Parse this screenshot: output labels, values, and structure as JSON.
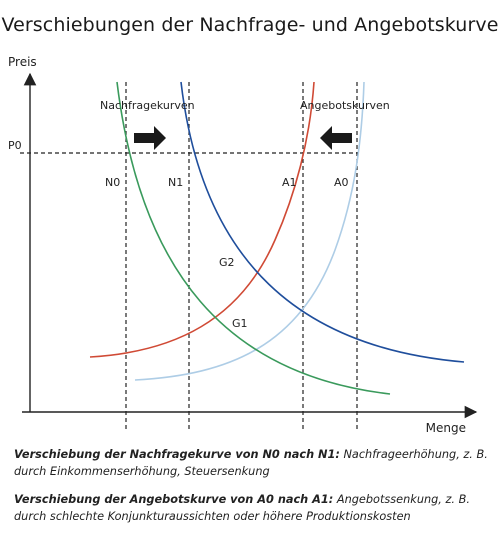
{
  "title": "Verschiebungen der Nachfrage- und Angebotskurve",
  "axes": {
    "y_label": "Preis",
    "x_label": "Menge"
  },
  "price_level_label": "P0",
  "group_labels": {
    "demand": "Nachfragekurven",
    "supply": "Angebotskurven"
  },
  "curve_labels": {
    "n0": "N0",
    "n1": "N1",
    "a1": "A1",
    "a0": "A0"
  },
  "equilibrium_labels": {
    "g1": "G1",
    "g2": "G2"
  },
  "colors": {
    "demand_n0": "#3a9a5c",
    "demand_n1": "#1f4e9c",
    "supply_a1": "#d04a35",
    "supply_a0": "#aecde6",
    "arrow": "#1a1a1a"
  },
  "captions": [
    {
      "bold": "Verschiebung der Nachfragekurve von N0 nach N1:",
      "text": " Nachfrageerhöhung, z. B. durch Einkommenserhöhung, Steuersenkung"
    },
    {
      "bold": "Verschiebung der Angebotskurve von A0 nach A1:",
      "text": " Angebotssenkung, z. B. durch schlechte Konjunkturaussichten oder höhere Produktionskosten"
    }
  ]
}
